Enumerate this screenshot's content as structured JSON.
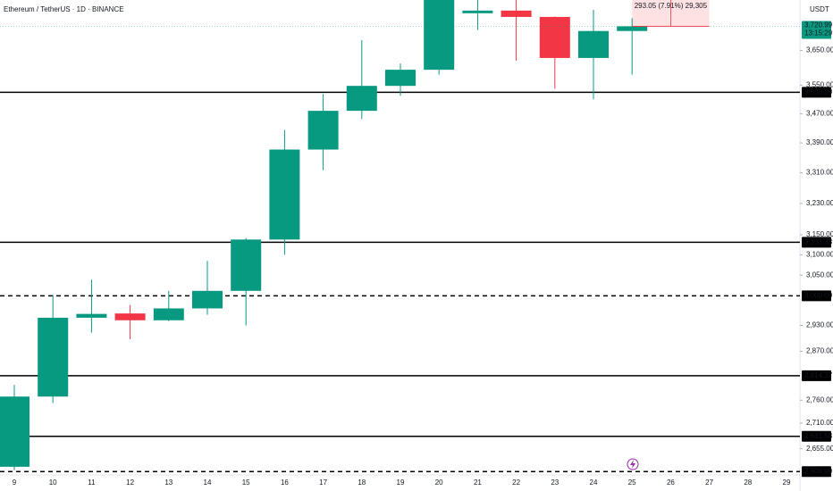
{
  "chart_data": {
    "type": "candlestick",
    "title": "Ethereum / TetherUS · 1D · BINANCE",
    "currency": "USDT",
    "categories": [
      "9",
      "10",
      "11",
      "12",
      "13",
      "14",
      "15",
      "16",
      "17",
      "18",
      "19",
      "20",
      "21",
      "22",
      "23",
      "24",
      "25",
      "26",
      "27",
      "28",
      "29"
    ],
    "open": [
      2617,
      2768,
      2948,
      2958,
      2942,
      2970,
      3012,
      3138,
      3372,
      3478,
      3548,
      3594,
      3760,
      3768,
      3749,
      3628,
      3707,
      null,
      null,
      null,
      null
    ],
    "high": [
      2794,
      3002,
      3039,
      2978,
      3012,
      3085,
      3142,
      3425,
      3525,
      3680,
      3612,
      3850,
      3800,
      3800,
      3750,
      3770,
      3745,
      null,
      null,
      null,
      null
    ],
    "low": [
      2610,
      2754,
      2913,
      2898,
      2940,
      2955,
      2930,
      3100,
      3317,
      3455,
      3520,
      3580,
      3710,
      3620,
      3540,
      3510,
      3580,
      null,
      null,
      null,
      null
    ],
    "close": [
      2768,
      2948,
      2957,
      2942,
      2970,
      3012,
      3138,
      3372,
      3478,
      3548,
      3594,
      3805,
      3768,
      3749,
      3628,
      3707,
      3720.99,
      null,
      null,
      null,
      null
    ],
    "up_color": "#089981",
    "down_color": "#f23645",
    "log_scale": true,
    "ylim": [
      2600,
      3800
    ],
    "yticks": [
      {
        "value": 3650,
        "label": "3,650.00"
      },
      {
        "value": 3550,
        "label": "3,550.00"
      },
      {
        "value": 3470,
        "label": "3,470.00"
      },
      {
        "value": 3390,
        "label": "3,390.00"
      },
      {
        "value": 3310,
        "label": "3,310.00"
      },
      {
        "value": 3230,
        "label": "3,230.00"
      },
      {
        "value": 3150,
        "label": "3,150.00"
      },
      {
        "value": 3100,
        "label": "3,100.00"
      },
      {
        "value": 3050,
        "label": "3,050.00"
      },
      {
        "value": 2930,
        "label": "2,930.00"
      },
      {
        "value": 2870,
        "label": "2,870.00"
      },
      {
        "value": 2760,
        "label": "2,760.00"
      },
      {
        "value": 2710,
        "label": "2,710.00"
      },
      {
        "value": 2655,
        "label": "2,655.00"
      }
    ],
    "levels": [
      {
        "value": 3530,
        "label": "3,530.00",
        "style": "solid"
      },
      {
        "value": 3131.33,
        "label": "3,131.33",
        "style": "solid"
      },
      {
        "value": 3000,
        "label": "3,000.00",
        "style": "dashed"
      },
      {
        "value": 2814.37,
        "label": "2,814.37",
        "style": "solid"
      },
      {
        "value": 2681.58,
        "label": "2,681.58",
        "style": "solid"
      },
      {
        "value": 2606.99,
        "label": "2,606.99",
        "style": "dashed"
      }
    ],
    "last_price": {
      "value": 3720.99,
      "label": "3,720.99"
    },
    "countdown": "13:15:29",
    "measure_label": "293.05 (7.91%) 29,305"
  }
}
